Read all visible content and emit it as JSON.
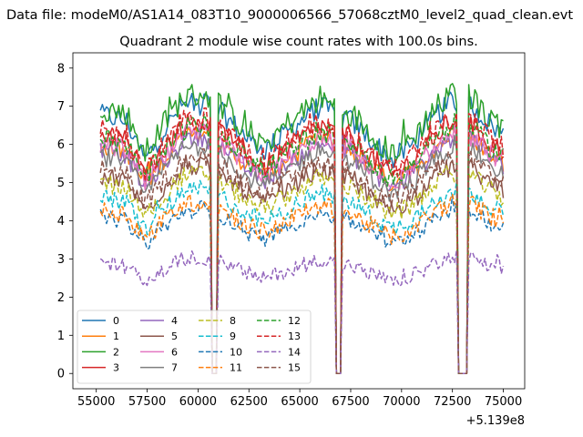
{
  "header": {
    "suptitle": "Data file: modeM0/AS1A14_083T10_9000006566_57068cztM0_level2_quad_clean.evt"
  },
  "chart_data": {
    "type": "line",
    "title": "Quadrant 2 module wise count rates with 100.0s bins.",
    "xlabel": "",
    "ylabel": "",
    "x_offset_label": "+5.139e8",
    "xlim": [
      53850,
      76050
    ],
    "ylim": [
      -0.4,
      8.4
    ],
    "x_ticks": [
      55000,
      57500,
      60000,
      62500,
      65000,
      67500,
      70000,
      72500,
      75000
    ],
    "x_tick_labels": [
      "55000",
      "57500",
      "60000",
      "62500",
      "65000",
      "67500",
      "70000",
      "72500",
      "75000"
    ],
    "y_ticks": [
      0,
      1,
      2,
      3,
      4,
      5,
      6,
      7,
      8
    ],
    "y_tick_labels": [
      "0",
      "1",
      "2",
      "3",
      "4",
      "5",
      "6",
      "7",
      "8"
    ],
    "grid": false,
    "legend_position": "lower-left",
    "legend_columns": 4,
    "x_start": 55200,
    "x_end": 75000,
    "bin_seconds": 100,
    "gaps": [
      {
        "start": 60650,
        "end": 60900,
        "level": 0.0
      },
      {
        "start": 66800,
        "end": 67050,
        "level": 0.0
      },
      {
        "start": 72800,
        "end": 73200,
        "level": 0.0
      }
    ],
    "profile": [
      {
        "x": 55200,
        "f": 1.0
      },
      {
        "x": 56500,
        "f": 0.97
      },
      {
        "x": 57400,
        "f": 0.82
      },
      {
        "x": 58200,
        "f": 0.92
      },
      {
        "x": 59200,
        "f": 1.03
      },
      {
        "x": 60300,
        "f": 1.05
      },
      {
        "x": 61200,
        "f": 1.0
      },
      {
        "x": 62500,
        "f": 0.9
      },
      {
        "x": 63300,
        "f": 0.86
      },
      {
        "x": 64500,
        "f": 0.94
      },
      {
        "x": 66000,
        "f": 1.03
      },
      {
        "x": 66700,
        "f": 1.0
      },
      {
        "x": 67400,
        "f": 0.98
      },
      {
        "x": 68500,
        "f": 0.9
      },
      {
        "x": 69500,
        "f": 0.82
      },
      {
        "x": 70500,
        "f": 0.88
      },
      {
        "x": 71800,
        "f": 1.0
      },
      {
        "x": 72600,
        "f": 1.05
      },
      {
        "x": 73500,
        "f": 1.03
      },
      {
        "x": 74200,
        "f": 0.97
      },
      {
        "x": 75000,
        "f": 0.92
      }
    ],
    "series": [
      {
        "name": "0",
        "base": 6.8,
        "noise": 0.3,
        "color": "#1f77b4",
        "dash": "solid"
      },
      {
        "name": "1",
        "base": 6.0,
        "noise": 0.25,
        "color": "#ff7f0e",
        "dash": "solid"
      },
      {
        "name": "2",
        "base": 7.0,
        "noise": 0.35,
        "color": "#2ca02c",
        "dash": "solid"
      },
      {
        "name": "3",
        "base": 6.3,
        "noise": 0.3,
        "color": "#d62728",
        "dash": "solid"
      },
      {
        "name": "4",
        "base": 5.9,
        "noise": 0.25,
        "color": "#9467bd",
        "dash": "solid"
      },
      {
        "name": "5",
        "base": 5.2,
        "noise": 0.25,
        "color": "#8c564b",
        "dash": "solid"
      },
      {
        "name": "6",
        "base": 6.0,
        "noise": 0.25,
        "color": "#e377c2",
        "dash": "solid"
      },
      {
        "name": "7",
        "base": 5.7,
        "noise": 0.25,
        "color": "#7f7f7f",
        "dash": "solid"
      },
      {
        "name": "8",
        "base": 5.0,
        "noise": 0.25,
        "color": "#bcbd22",
        "dash": "dashed"
      },
      {
        "name": "9",
        "base": 4.6,
        "noise": 0.25,
        "color": "#17becf",
        "dash": "dashed"
      },
      {
        "name": "10",
        "base": 4.1,
        "noise": 0.2,
        "color": "#1f77b4",
        "dash": "dashed"
      },
      {
        "name": "11",
        "base": 4.3,
        "noise": 0.25,
        "color": "#ff7f0e",
        "dash": "dashed"
      },
      {
        "name": "12",
        "base": 6.2,
        "noise": 0.3,
        "color": "#2ca02c",
        "dash": "dashed"
      },
      {
        "name": "13",
        "base": 6.4,
        "noise": 0.3,
        "color": "#d62728",
        "dash": "dashed"
      },
      {
        "name": "14",
        "base": 2.9,
        "noise": 0.2,
        "color": "#9467bd",
        "dash": "dashed"
      },
      {
        "name": "15",
        "base": 5.4,
        "noise": 0.25,
        "color": "#8c564b",
        "dash": "dashed"
      }
    ]
  }
}
